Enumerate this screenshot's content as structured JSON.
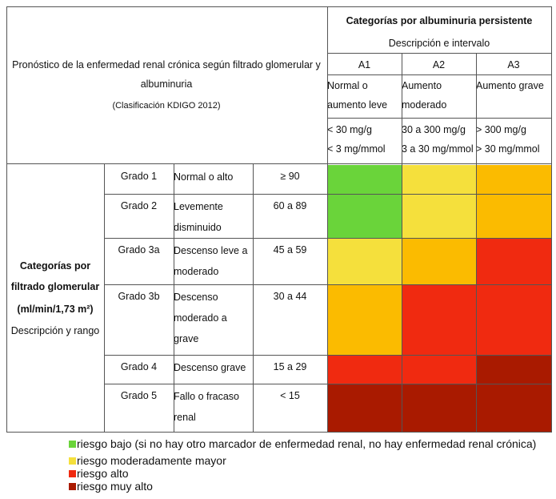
{
  "header": {
    "title_line1": "Pronóstico de la enfermedad renal crónica según filtrado glomerular y",
    "title_line2": "albuminuria",
    "subtitle": "(Clasificación KDIGO 2012)",
    "alb_title": "Categorías por albuminuria persistente",
    "alb_sub": "Descripción e intervalo"
  },
  "columns": [
    {
      "code": "A1",
      "desc_line1": "Normal o",
      "desc_line2": "aumento leve",
      "range_line1": "< 30 mg/g",
      "range_line2": "< 3 mg/mmol"
    },
    {
      "code": "A2",
      "desc_line1": "Aumento",
      "desc_line2": "moderado",
      "range_line1": "30 a 300 mg/g",
      "range_line2": "3 a 30 mg/mmol"
    },
    {
      "code": "A3",
      "desc_line1": "Aumento grave",
      "desc_line2": "",
      "range_line1": "> 300 mg/g",
      "range_line2": "> 30 mg/mmol"
    }
  ],
  "side": {
    "line1": "Categorías por",
    "line2": "filtrado glomerular",
    "line3": "(ml/min/1,73 m²)",
    "line4": "Descripción y rango"
  },
  "rows": [
    {
      "grade": "Grado 1",
      "desc": [
        "Normal o alto"
      ],
      "range": "≥ 90",
      "risks": [
        "low",
        "moderate",
        "high"
      ]
    },
    {
      "grade": "Grado 2",
      "desc": [
        "Levemente",
        "disminuido"
      ],
      "range": "60 a 89",
      "risks": [
        "low",
        "moderate",
        "high"
      ]
    },
    {
      "grade": "Grado 3a",
      "desc": [
        "Descenso leve a",
        "moderado"
      ],
      "range": "45 a 59",
      "risks": [
        "moderate",
        "high",
        "veryhigh"
      ]
    },
    {
      "grade": "Grado 3b",
      "desc": [
        "Descenso",
        "moderado a",
        "grave"
      ],
      "range": "30 a 44",
      "risks": [
        "high",
        "veryhigh",
        "veryhigh"
      ]
    },
    {
      "grade": "Grado 4",
      "desc": [
        "Descenso grave"
      ],
      "range": "15 a 29",
      "risks": [
        "veryhigh",
        "veryhigh",
        "severe"
      ]
    },
    {
      "grade": "Grado 5",
      "desc": [
        "Fallo o fracaso",
        "renal"
      ],
      "range": "< 15",
      "risks": [
        "severe",
        "severe",
        "severe"
      ]
    }
  ],
  "colors": {
    "low": "#6ad43a",
    "moderate": "#f5e03c",
    "high": "#fbbb00",
    "veryhigh": "#f02a10",
    "severe": "#a91a00"
  },
  "legend": [
    {
      "color": "#6ad43a",
      "label": "riesgo bajo (si no hay otro marcador de enfermedad renal, no hay enfermedad renal crónica)"
    },
    {
      "color": "#f5e03c",
      "label": "riesgo moderadamente mayor"
    },
    {
      "color": "#f02a10",
      "label": "riesgo alto"
    },
    {
      "color": "#a91a00",
      "label": "riesgo muy alto"
    }
  ]
}
